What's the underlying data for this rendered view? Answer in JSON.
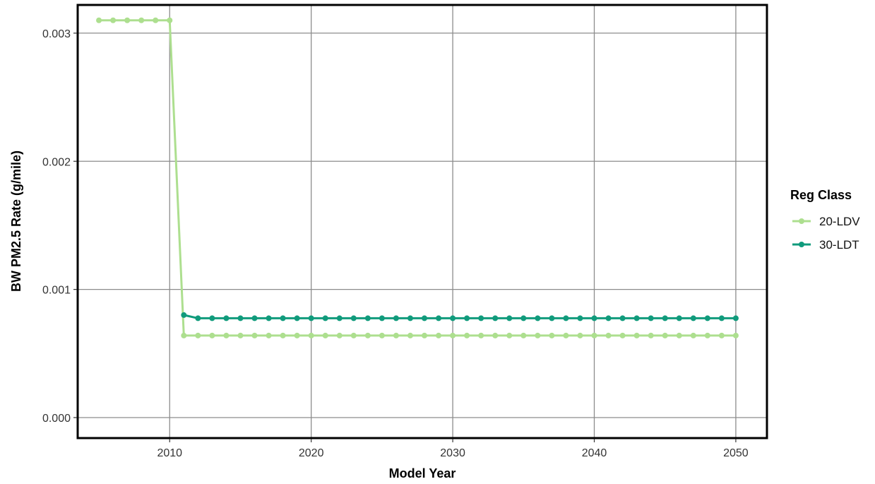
{
  "chart_data": {
    "type": "line",
    "title": "",
    "xlabel": "Model Year",
    "ylabel": "BW PM2.5 Rate (g/mile)",
    "xlim": [
      2003.5,
      2052.2
    ],
    "ylim": [
      -0.00016,
      0.00322
    ],
    "x_ticks": [
      2010,
      2020,
      2030,
      2040,
      2050
    ],
    "y_ticks": [
      0.0,
      0.001,
      0.002,
      0.003
    ],
    "x_tick_labels": [
      "2010",
      "2020",
      "2030",
      "2040",
      "2050"
    ],
    "y_tick_labels": [
      "0.000",
      "0.001",
      "0.002",
      "0.003"
    ],
    "grid": true,
    "legend": {
      "title": "Reg Class",
      "placement": "right"
    },
    "series": [
      {
        "name": "20-LDV",
        "color": "#addf8f",
        "x_start": 2005,
        "x_end": 2050,
        "values": [
          0.0031,
          0.0031,
          0.0031,
          0.0031,
          0.0031,
          0.0031,
          0.00064,
          0.00064,
          0.00064,
          0.00064,
          0.00064,
          0.00064,
          0.00064,
          0.00064,
          0.00064,
          0.00064,
          0.00064,
          0.00064,
          0.00064,
          0.00064,
          0.00064,
          0.00064,
          0.00064,
          0.00064,
          0.00064,
          0.00064,
          0.00064,
          0.00064,
          0.00064,
          0.00064,
          0.00064,
          0.00064,
          0.00064,
          0.00064,
          0.00064,
          0.00064,
          0.00064,
          0.00064,
          0.00064,
          0.00064,
          0.00064,
          0.00064,
          0.00064,
          0.00064,
          0.00064,
          0.00064
        ]
      },
      {
        "name": "30-LDT",
        "color": "#109b7c",
        "x_start": 2011,
        "x_end": 2050,
        "values": [
          0.0008,
          0.000775,
          0.000775,
          0.000775,
          0.000775,
          0.000775,
          0.000775,
          0.000775,
          0.000775,
          0.000775,
          0.000775,
          0.000775,
          0.000775,
          0.000775,
          0.000775,
          0.000775,
          0.000775,
          0.000775,
          0.000775,
          0.000775,
          0.000775,
          0.000775,
          0.000775,
          0.000775,
          0.000775,
          0.000775,
          0.000775,
          0.000775,
          0.000775,
          0.000775,
          0.000775,
          0.000775,
          0.000775,
          0.000775,
          0.000775,
          0.000775,
          0.000775,
          0.000775,
          0.000775,
          0.000775
        ]
      }
    ]
  }
}
